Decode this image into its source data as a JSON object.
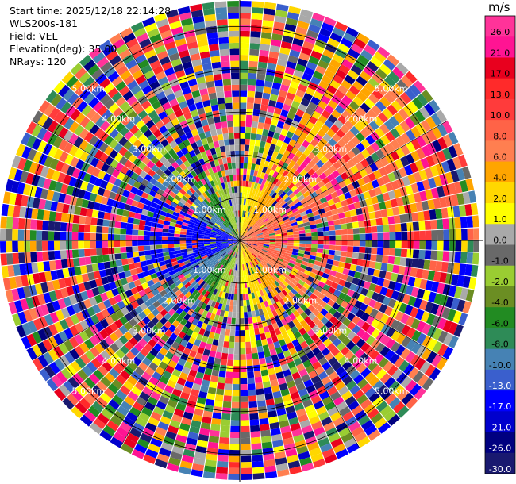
{
  "info": {
    "start_time": "Start time: 2025/12/18 22:14:28",
    "instrument": "WLS200s-181",
    "field": "Field: VEL",
    "elevation": "Elevation(deg): 35.00",
    "nrays": "NRays: 120"
  },
  "colorbar": {
    "unit": "m/s",
    "ticks": [
      "26.0",
      "21.0",
      "17.0",
      "13.0",
      "10.0",
      "8.0",
      "6.0",
      "4.0",
      "2.0",
      "1.0",
      "0.0",
      "-1.0",
      "-2.0",
      "-4.0",
      "-6.0",
      "-8.0",
      "-10.0",
      "-13.0",
      "-17.0",
      "-21.0",
      "-26.0",
      "-30.0"
    ],
    "colors": [
      "#ff3399",
      "#ff1493",
      "#e8001e",
      "#ff2a2a",
      "#ff3b3b",
      "#ff6347",
      "#ff7f50",
      "#ffa500",
      "#ffd700",
      "#ffff00",
      "#a9a9a9",
      "#696969",
      "#9acd32",
      "#6b8e23",
      "#228b22",
      "#2e8b57",
      "#4682b4",
      "#3a5fcd",
      "#0000ff",
      "#0000cd",
      "#000080",
      "#191970"
    ]
  },
  "chart_data": {
    "type": "heatmap",
    "projection": "polar PPI",
    "field": "VEL",
    "nrays": 120,
    "elevation_deg": 35.0,
    "range_rings_km": [
      1.0,
      2.0,
      3.0,
      4.0,
      5.0
    ],
    "ring_labels": [
      "1.00km",
      "2.00km",
      "3.00km",
      "4.00km",
      "5.00km"
    ],
    "grid": true,
    "colorbar_position": "right"
  }
}
